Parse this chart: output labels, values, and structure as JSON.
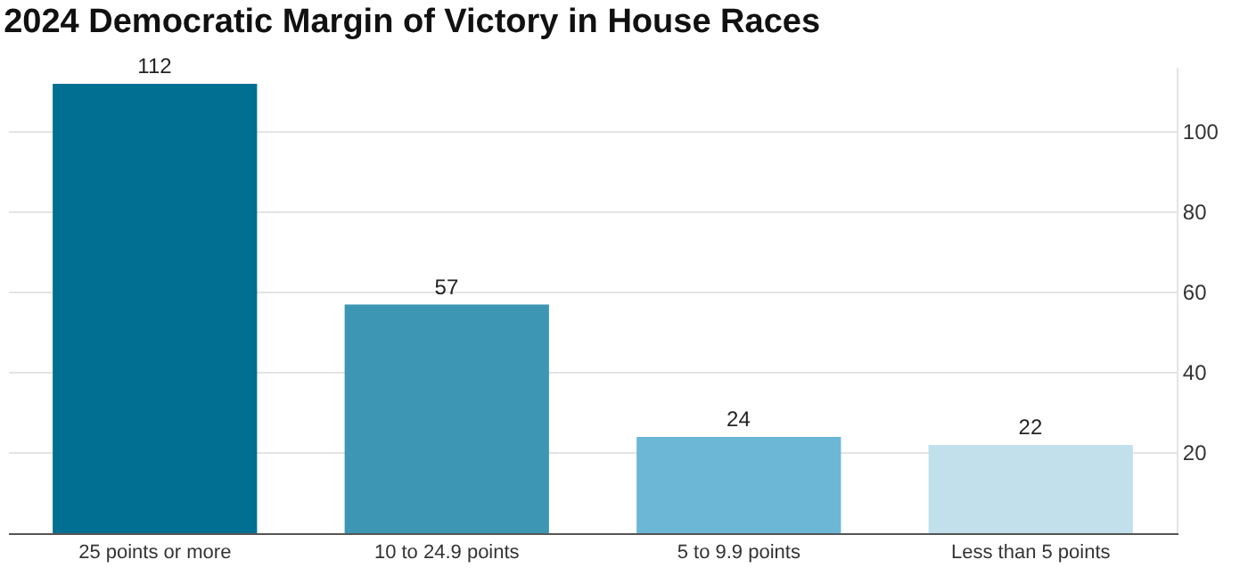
{
  "chart_data": {
    "type": "bar",
    "title": "2024 Democratic Margin of Victory in House Races",
    "categories": [
      "25 points or more",
      "10 to 24.9 points",
      "5 to 9.9 points",
      "Less than 5 points"
    ],
    "values": [
      112,
      57,
      24,
      22
    ],
    "colors": [
      "#016f91",
      "#3d96b4",
      "#6db7d6",
      "#c2dfec"
    ],
    "data_labels": true,
    "ylim": [
      0,
      116
    ],
    "yticks": [
      20,
      40,
      60,
      80,
      100
    ],
    "grid": "y"
  }
}
